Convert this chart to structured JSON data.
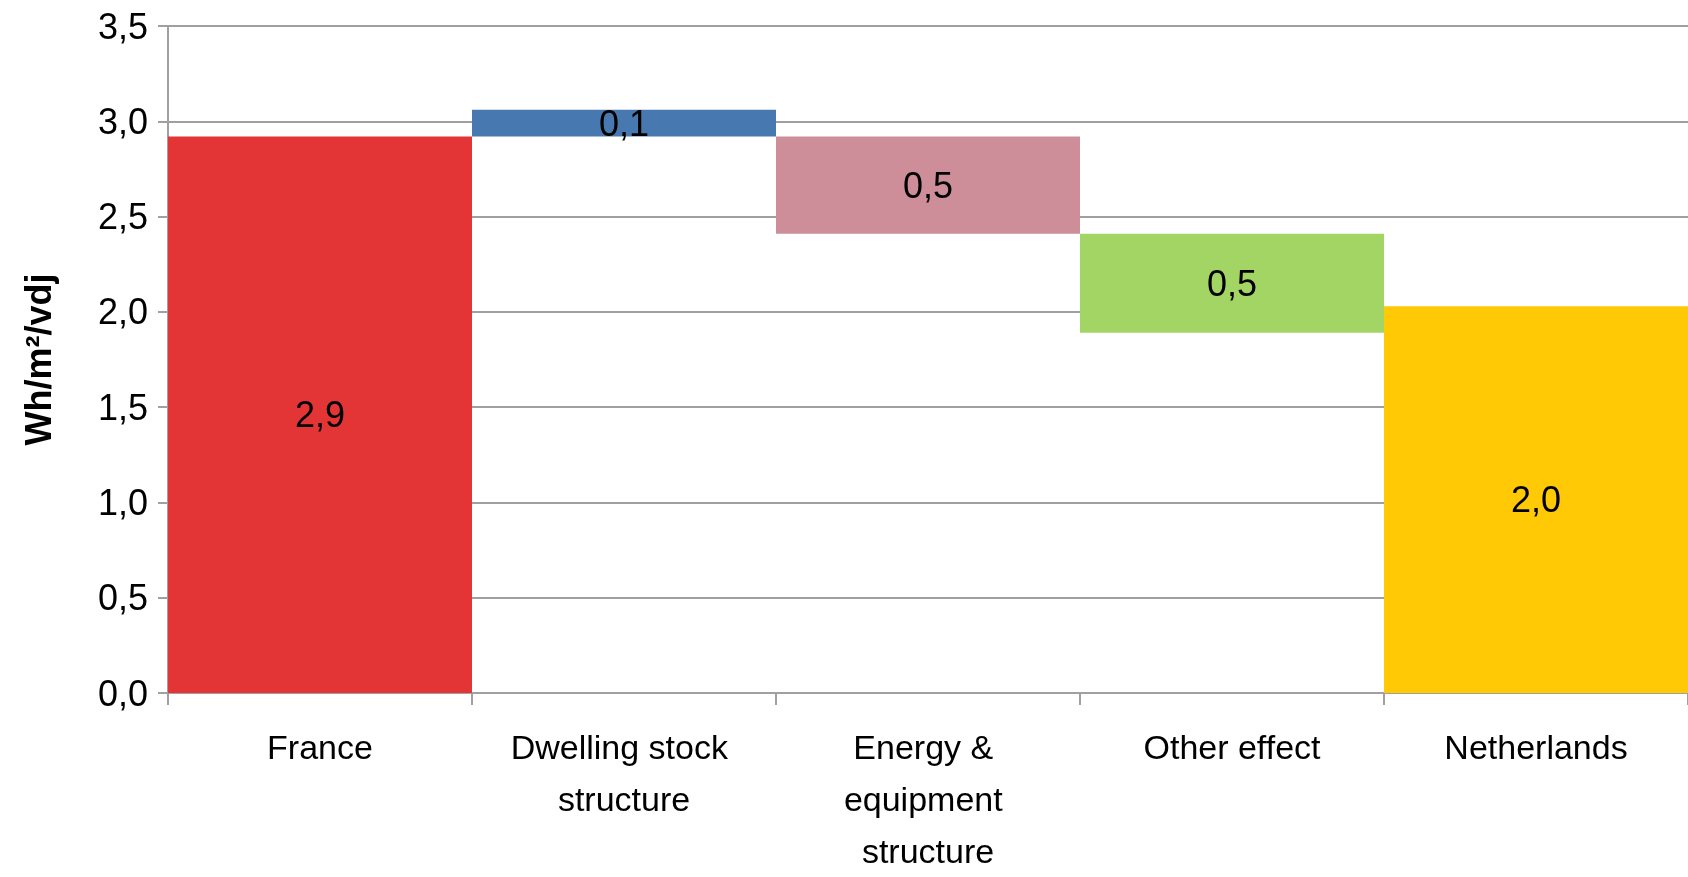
{
  "chart_data": {
    "type": "bar",
    "categories": [
      "France",
      "Dwelling stock structure",
      "Energy & equipment structure",
      "Other effect",
      "Netherlands"
    ],
    "values": [
      2.92,
      0.14,
      -0.51,
      -0.52,
      2.03
    ],
    "base": [
      0,
      2.92,
      2.92,
      2.41,
      0
    ],
    "colors": [
      "#e33535",
      "#4778b0",
      "#cd8d99",
      "#a2d563",
      "#ffc906"
    ],
    "value_labels": [
      "2,9",
      "0,1",
      "0,5",
      "0,5",
      "2,0"
    ],
    "ylabel": "Wh/m²/vdj",
    "ylim": [
      0,
      3.5
    ],
    "yticks": [
      {
        "value": 0,
        "label": "0,0"
      },
      {
        "value": 0.5,
        "label": "0,5"
      },
      {
        "value": 1,
        "label": "1,0"
      },
      {
        "value": 1.5,
        "label": "1,5"
      },
      {
        "value": 2,
        "label": "2,0"
      },
      {
        "value": 2.5,
        "label": "2,5"
      },
      {
        "value": 3,
        "label": "3,0"
      },
      {
        "value": 3.5,
        "label": "3,5"
      }
    ],
    "grid": "y"
  }
}
